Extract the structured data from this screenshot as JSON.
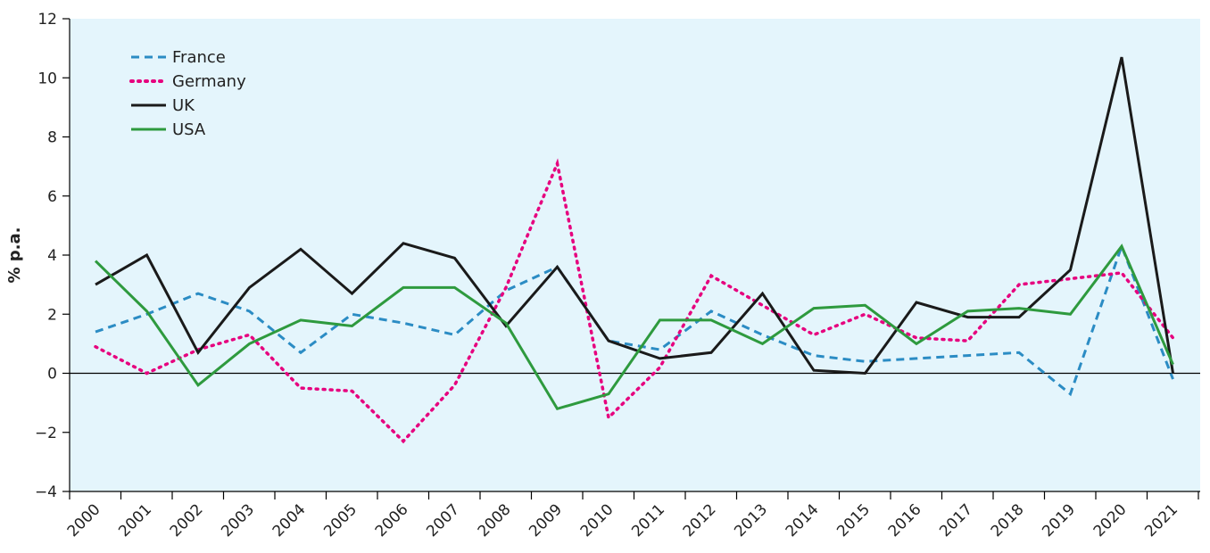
{
  "chart_data": {
    "type": "line",
    "title": "",
    "xlabel": "",
    "ylabel": "% p.a.",
    "ylim": [
      -4,
      12
    ],
    "yticks": [
      -4,
      -2,
      0,
      2,
      4,
      6,
      8,
      10,
      12
    ],
    "ytick_labels": [
      "−4",
      "−2",
      "0",
      "2",
      "4",
      "6",
      "8",
      "10",
      "12"
    ],
    "grid": false,
    "legend_position": "top-left",
    "background_color": "#e4f5fc",
    "categories": [
      "2000",
      "2001",
      "2002",
      "2003",
      "2004",
      "2005",
      "2006",
      "2007",
      "2008",
      "2009",
      "2010",
      "2011",
      "2012",
      "2013",
      "2014",
      "2015",
      "2016",
      "2017",
      "2018",
      "2019",
      "2020",
      "2021"
    ],
    "series": [
      {
        "name": "France",
        "color": "#2b8cc4",
        "style": "dashed",
        "values": [
          1.4,
          2.0,
          2.7,
          2.1,
          0.7,
          2.0,
          1.7,
          1.3,
          2.8,
          3.6,
          1.1,
          0.8,
          2.1,
          1.3,
          0.6,
          0.4,
          0.5,
          0.6,
          0.7,
          -0.7,
          4.3,
          -0.2
        ]
      },
      {
        "name": "Germany",
        "color": "#e6007e",
        "style": "dotted",
        "values": [
          0.9,
          0.0,
          0.8,
          1.3,
          -0.5,
          -0.6,
          -2.3,
          -0.4,
          2.9,
          7.1,
          -1.5,
          0.2,
          3.3,
          2.3,
          1.3,
          2.0,
          1.2,
          1.1,
          3.0,
          3.2,
          3.4,
          1.2
        ]
      },
      {
        "name": "UK",
        "color": "#1a1a1a",
        "style": "solid",
        "values": [
          3.0,
          4.0,
          0.7,
          2.9,
          4.2,
          2.7,
          4.4,
          3.9,
          1.6,
          3.6,
          1.1,
          0.5,
          0.7,
          2.7,
          0.1,
          0.0,
          2.4,
          1.9,
          1.9,
          3.5,
          10.7,
          0.0
        ]
      },
      {
        "name": "USA",
        "color": "#2e9a3e",
        "style": "solid",
        "values": [
          3.8,
          2.1,
          -0.4,
          1.0,
          1.8,
          1.6,
          2.9,
          2.9,
          1.7,
          -1.2,
          -0.7,
          1.8,
          1.8,
          1.0,
          2.2,
          2.3,
          1.0,
          2.1,
          2.2,
          2.0,
          4.3,
          0.3
        ]
      }
    ]
  }
}
